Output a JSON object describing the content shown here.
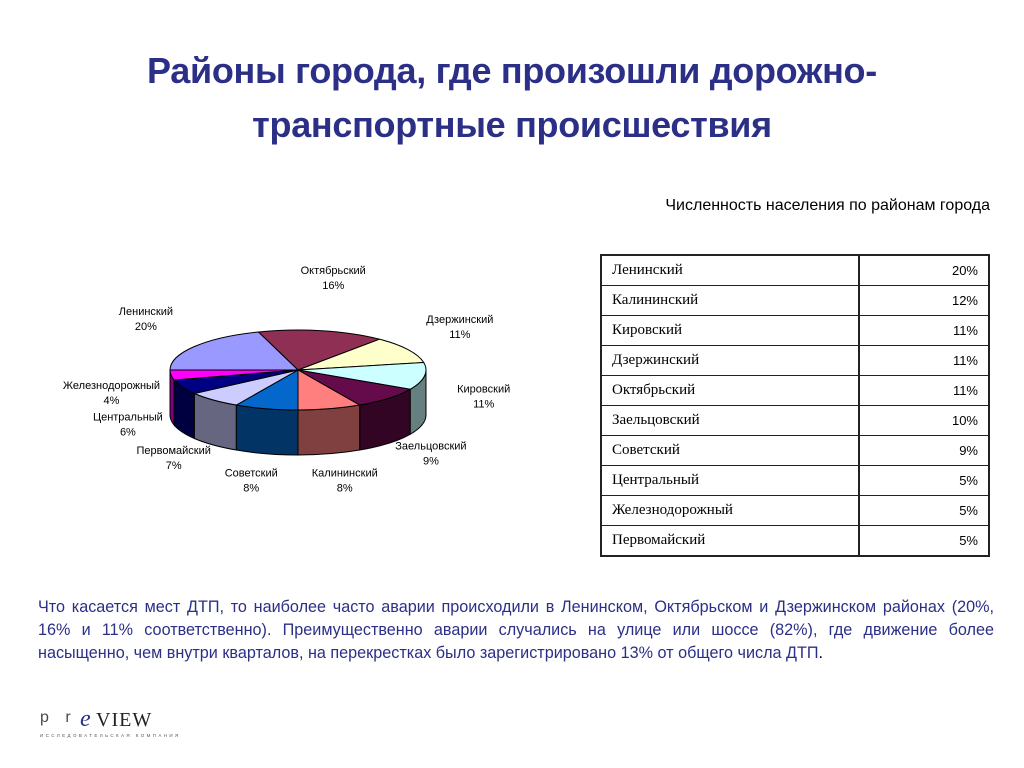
{
  "title": "Районы города, где произошли дорожно-транспортные происшествия",
  "table": {
    "caption": "Численность населения по районам города",
    "rows": [
      {
        "name": "Ленинский",
        "value": "20%"
      },
      {
        "name": "Калининский",
        "value": "12%"
      },
      {
        "name": "Кировский",
        "value": "11%"
      },
      {
        "name": "Дзержинский",
        "value": "11%"
      },
      {
        "name": "Октябрьский",
        "value": "11%"
      },
      {
        "name": "Заельцовский",
        "value": "10%"
      },
      {
        "name": "Советский",
        "value": "9%"
      },
      {
        "name": "Центральный",
        "value": "5%"
      },
      {
        "name": "Железнодорожный",
        "value": "5%"
      },
      {
        "name": "Первомайский",
        "value": "5%"
      }
    ]
  },
  "chart_data": {
    "type": "pie",
    "title": "",
    "categories": [
      "Октябрьский",
      "Дзержинский",
      "Кировский",
      "Заельцовский",
      "Калининский",
      "Советский",
      "Первомайский",
      "Центральный",
      "Железнодорожный",
      "Ленинский"
    ],
    "values": [
      16,
      11,
      11,
      9,
      8,
      8,
      7,
      6,
      4,
      20
    ],
    "value_labels": [
      "16%",
      "11%",
      "11%",
      "9%",
      "8%",
      "8%",
      "7%",
      "6%",
      "4%",
      "20%"
    ],
    "colors": [
      "#8e2f53",
      "#ffffcc",
      "#ccffff",
      "#650a4a",
      "#ff7f7f",
      "#0467cc",
      "#ccccff",
      "#000082",
      "#ff00ff",
      "#9999ff"
    ],
    "style": "3d",
    "legend": "none"
  },
  "paragraph": {
    "text": "Что касается мест ДТП, то наиболее часто аварии происходили в Ленинском, Октябрьском и Дзержинском районах (20%, 16% и 11% соответственно). Преимущественно аварии случались на улице или шоссе (82%), где движение более насыщенно, чем внутри кварталов, на перекрестках было зарегистрировано 13% от общего числа ДТП",
    "end": "."
  },
  "logo": {
    "text": "preVIEW",
    "subtitle": "исследовательская компания"
  }
}
